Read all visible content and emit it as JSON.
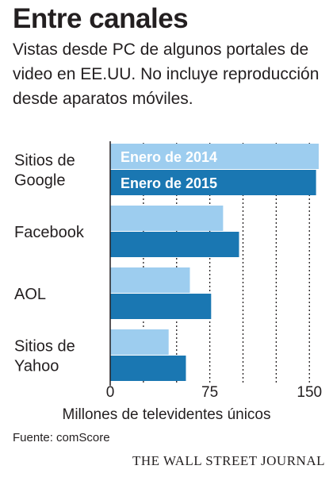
{
  "header": {
    "title": "Entre canales",
    "subtitle": "Vistas desde PC de algunos portales de video en EE.UU. No incluye reproducción desde aparatos móviles."
  },
  "chart_data": {
    "type": "bar",
    "orientation": "horizontal",
    "categories": [
      [
        "Sitios de",
        "Google"
      ],
      [
        "Facebook"
      ],
      [
        "AOL"
      ],
      [
        "Sitios de",
        "Yahoo"
      ]
    ],
    "series": [
      {
        "name": "Enero de 2014",
        "color": "#9dcdef",
        "values": [
          157,
          85,
          60,
          44
        ]
      },
      {
        "name": "Enero de 2015",
        "color": "#1a77b2",
        "values": [
          155,
          97,
          76,
          57
        ]
      }
    ],
    "xlabel": "Millones de televidentes únicos",
    "xlim": [
      0,
      160
    ],
    "xticks": [
      0,
      75,
      150
    ],
    "gridlines": [
      25,
      50,
      75,
      100,
      125,
      150
    ],
    "legend": "inside-top"
  },
  "footer": {
    "source": "Fuente: comScore",
    "brand": "THE WALL STREET JOURNAL"
  }
}
